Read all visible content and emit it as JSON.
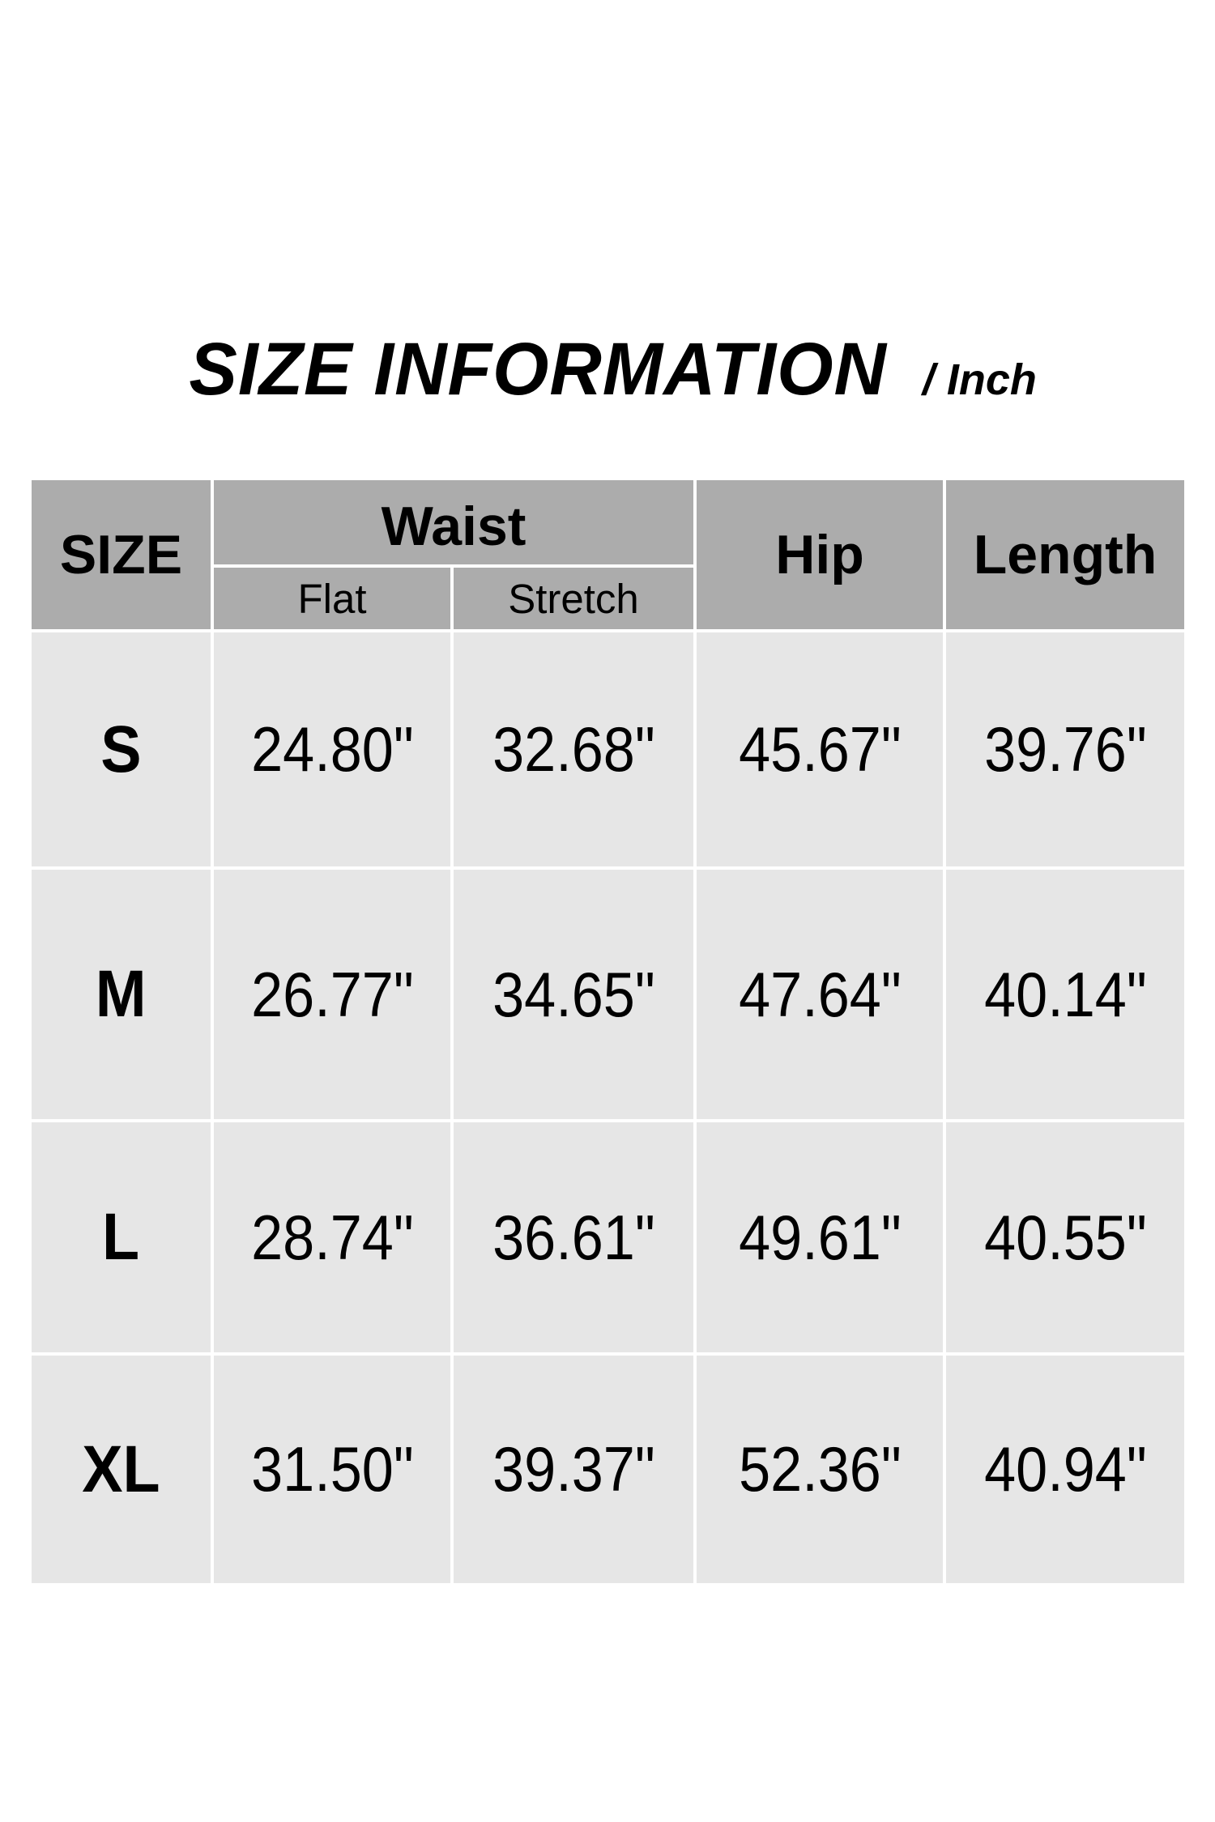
{
  "title": {
    "main": "SIZE INFORMATION",
    "unit": "/ Inch"
  },
  "table": {
    "size_header": "SIZE",
    "waist_header": "Waist",
    "flat_header": "Flat",
    "stretch_header": "Stretch",
    "hip_header": "Hip",
    "length_header": "Length",
    "rows": [
      {
        "size": "S",
        "waist_flat": "24.80\"",
        "waist_stretch": "32.68\"",
        "hip": "45.67\"",
        "length": "39.76\""
      },
      {
        "size": "M",
        "waist_flat": "26.77\"",
        "waist_stretch": "34.65\"",
        "hip": "47.64\"",
        "length": "40.14\""
      },
      {
        "size": "L",
        "waist_flat": "28.74\"",
        "waist_stretch": "36.61\"",
        "hip": "49.61\"",
        "length": "40.55\""
      },
      {
        "size": "XL",
        "waist_flat": "31.50\"",
        "waist_stretch": "39.37\"",
        "hip": "52.36\"",
        "length": "40.94\""
      }
    ]
  },
  "colors": {
    "page_bg": "#ffffff",
    "header_bg": "#acacac",
    "row_bg": "#e6e6e6",
    "grid_line": "#ffffff",
    "text": "#000000"
  },
  "chart_data": {
    "type": "table",
    "title": "SIZE INFORMATION / Inch",
    "unit": "Inch",
    "columns": [
      "SIZE",
      "Waist Flat",
      "Waist Stretch",
      "Hip",
      "Length"
    ],
    "rows": [
      [
        "S",
        24.8,
        32.68,
        45.67,
        39.76
      ],
      [
        "M",
        26.77,
        34.65,
        47.64,
        40.14
      ],
      [
        "L",
        28.74,
        36.61,
        49.61,
        40.55
      ],
      [
        "XL",
        31.5,
        39.37,
        52.36,
        40.94
      ]
    ]
  }
}
